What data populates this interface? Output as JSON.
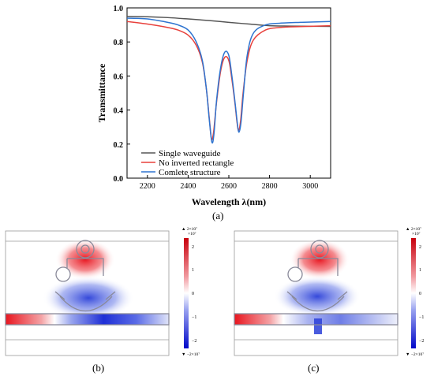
{
  "panel_labels": {
    "a": "(a)",
    "b": "(b)",
    "c": "(c)"
  },
  "chart_data": {
    "type": "line",
    "title": "",
    "xlabel": "Wavelength λ(nm)",
    "ylabel": "Transmittance",
    "xlim": [
      2100,
      3100
    ],
    "ylim": [
      0.0,
      1.0
    ],
    "x_ticks": [
      2200,
      2400,
      2600,
      2800,
      3000
    ],
    "y_ticks": [
      0.0,
      0.2,
      0.4,
      0.6,
      0.8,
      1.0
    ],
    "x_tick_labels": [
      "2200",
      "2400",
      "2600",
      "2800",
      "3000"
    ],
    "y_tick_labels": [
      "0.0",
      "0.2",
      "0.4",
      "0.6",
      "0.8",
      "1.0"
    ],
    "grid": false,
    "legend_position": "bottom-left",
    "series": [
      {
        "name": "Single waveguide",
        "color": "#555555",
        "x": [
          2100,
          2200,
          2300,
          2400,
          2500,
          2600,
          2700,
          2800,
          2900,
          3000,
          3100
        ],
        "y": [
          0.95,
          0.948,
          0.943,
          0.935,
          0.926,
          0.915,
          0.905,
          0.895,
          0.893,
          0.892,
          0.891
        ]
      },
      {
        "name": "No inverted rectangle",
        "color": "#e8413c",
        "x": [
          2100,
          2200,
          2300,
          2350,
          2400,
          2440,
          2470,
          2490,
          2505,
          2515,
          2525,
          2540,
          2560,
          2580,
          2600,
          2615,
          2630,
          2640,
          2648,
          2658,
          2670,
          2690,
          2720,
          2780,
          2850,
          2950,
          3100
        ],
        "y": [
          0.92,
          0.905,
          0.885,
          0.87,
          0.84,
          0.78,
          0.68,
          0.52,
          0.34,
          0.23,
          0.27,
          0.45,
          0.63,
          0.71,
          0.69,
          0.58,
          0.44,
          0.33,
          0.28,
          0.34,
          0.5,
          0.69,
          0.81,
          0.87,
          0.885,
          0.89,
          0.895
        ]
      },
      {
        "name": "Comlete structure",
        "color": "#2e74d0",
        "x": [
          2100,
          2200,
          2300,
          2350,
          2400,
          2440,
          2470,
          2490,
          2505,
          2517,
          2527,
          2540,
          2560,
          2580,
          2600,
          2615,
          2630,
          2642,
          2650,
          2660,
          2672,
          2690,
          2720,
          2780,
          2850,
          2950,
          3100
        ],
        "y": [
          0.94,
          0.935,
          0.915,
          0.9,
          0.87,
          0.8,
          0.69,
          0.52,
          0.33,
          0.21,
          0.26,
          0.46,
          0.65,
          0.74,
          0.72,
          0.6,
          0.45,
          0.32,
          0.27,
          0.33,
          0.5,
          0.72,
          0.85,
          0.9,
          0.91,
          0.915,
          0.92
        ]
      }
    ]
  },
  "colorbars": {
    "b": {
      "top_label": "▲ 2×10⁷",
      "exponent_label": "×10⁷",
      "bottom_label": "▼ −2×10⁷",
      "ticks": [
        "2",
        "1",
        "0",
        "−1",
        "−2"
      ]
    },
    "c": {
      "top_label": "▲ 2×10⁷",
      "exponent_label": "×10⁷",
      "bottom_label": "▼ −2×10⁷",
      "ticks": [
        "2",
        "1",
        "0",
        "−1",
        "−2"
      ]
    }
  }
}
